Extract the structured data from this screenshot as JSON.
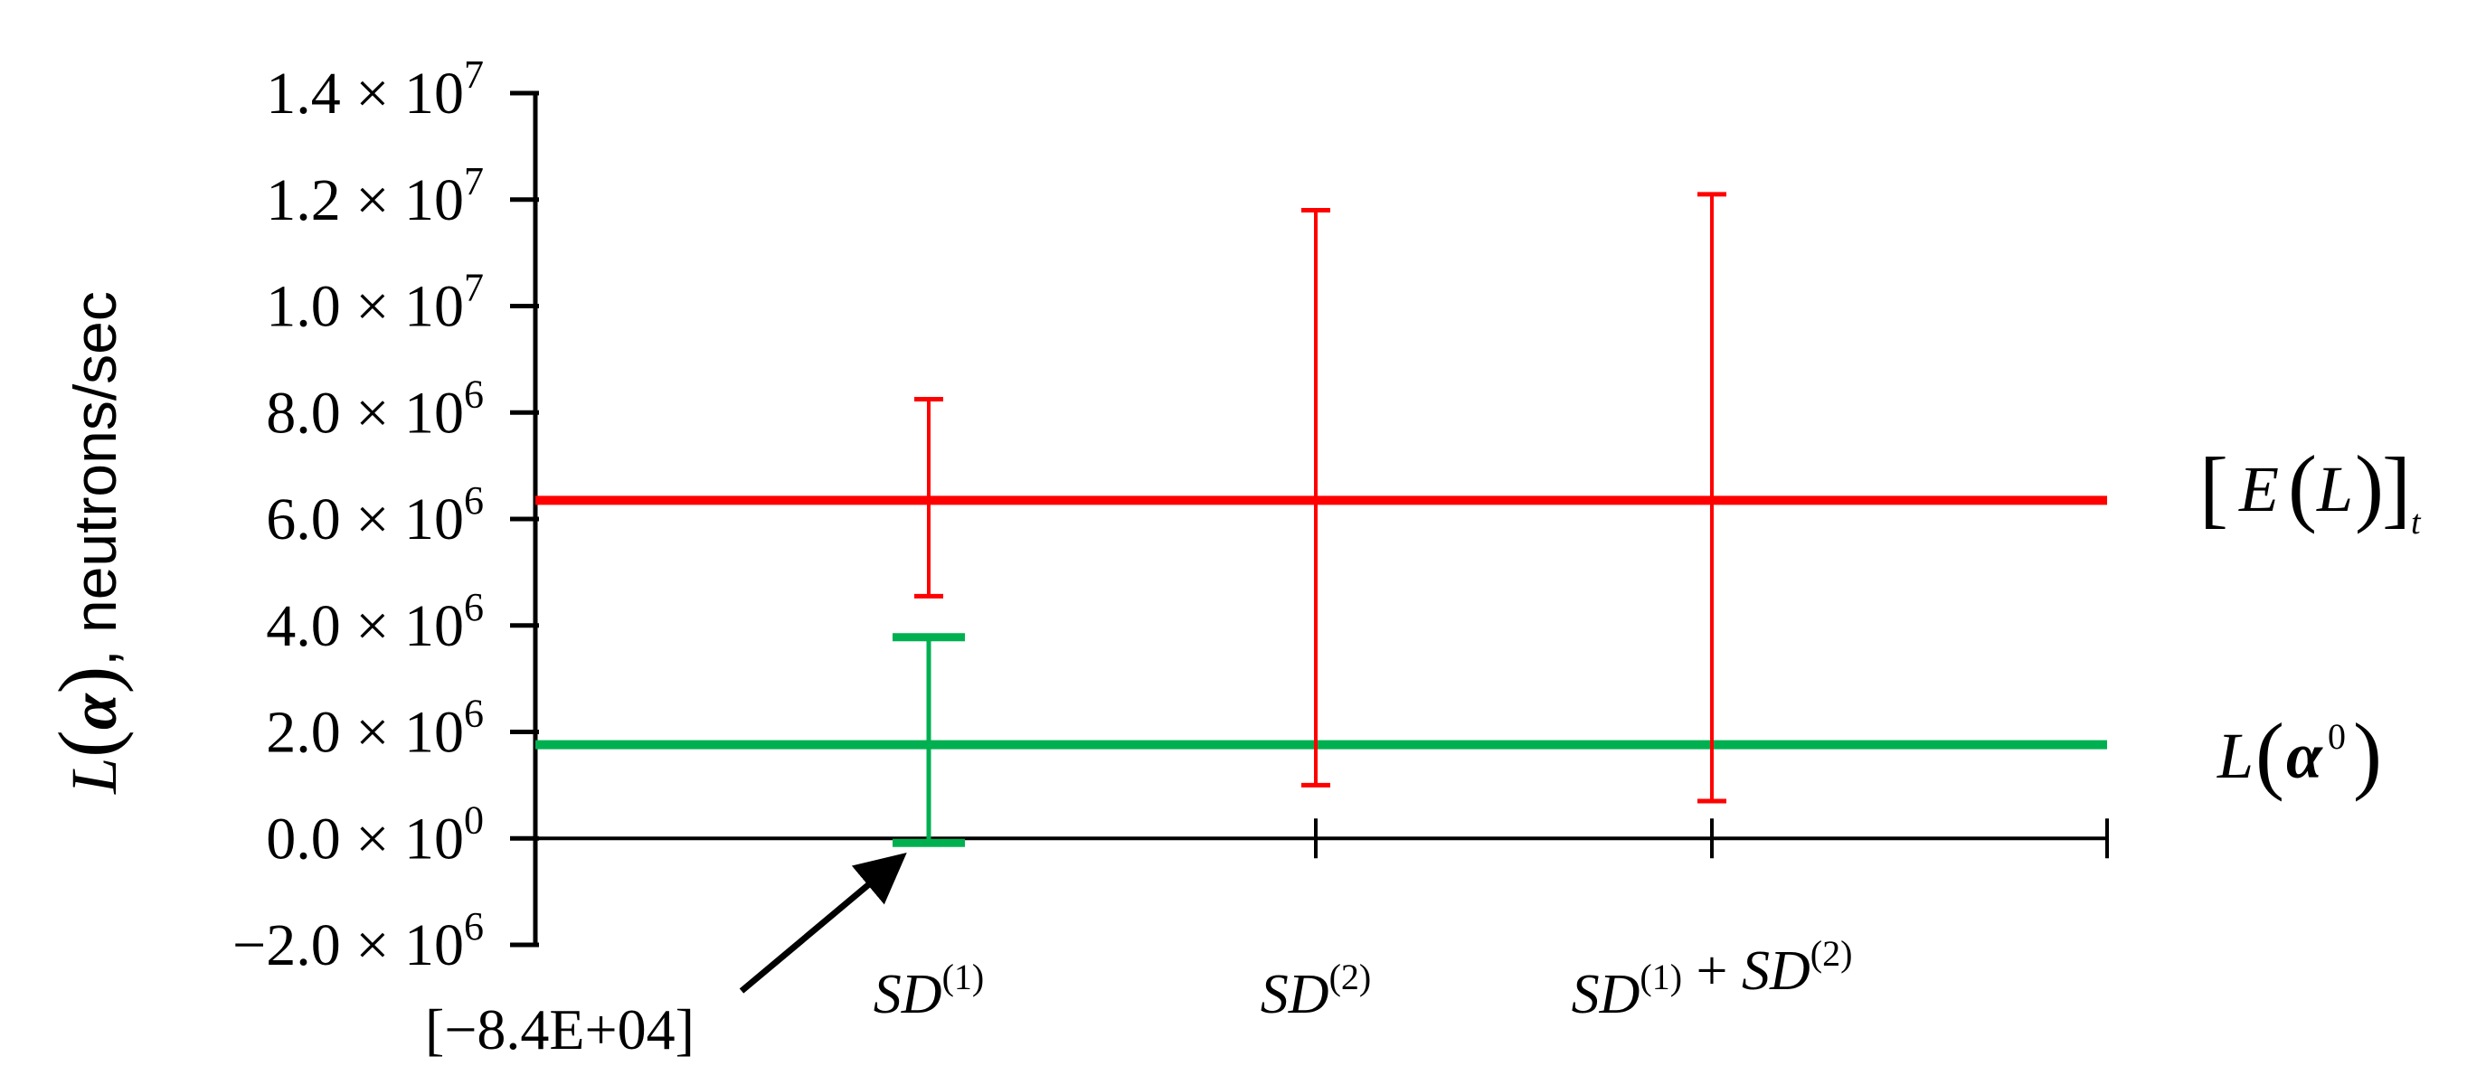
{
  "chart_data": {
    "type": "errorbar",
    "ylabel": {
      "main": "L",
      "arg": "α",
      "rest": ", neutrons/sec"
    },
    "ylim": [
      -2000000,
      14000000
    ],
    "yticks": [
      {
        "value": -2000000,
        "mantissa": "−2.0 × 10",
        "exp": "6"
      },
      {
        "value": 0,
        "mantissa": "0.0 × 10",
        "exp": "0"
      },
      {
        "value": 2000000,
        "mantissa": "2.0 × 10",
        "exp": "6"
      },
      {
        "value": 4000000,
        "mantissa": "4.0 × 10",
        "exp": "6"
      },
      {
        "value": 6000000,
        "mantissa": "6.0 × 10",
        "exp": "6"
      },
      {
        "value": 8000000,
        "mantissa": "8.0 × 10",
        "exp": "6"
      },
      {
        "value": 10000000,
        "mantissa": "1.0 × 10",
        "exp": "7"
      },
      {
        "value": 12000000,
        "mantissa": "1.2 × 10",
        "exp": "7"
      },
      {
        "value": 14000000,
        "mantissa": "1.4 × 10",
        "exp": "7"
      }
    ],
    "categories": [
      {
        "parts": [
          {
            "t": "SD",
            "sup": "(1)"
          }
        ]
      },
      {
        "parts": [
          {
            "t": "SD",
            "sup": "(2)"
          }
        ]
      },
      {
        "parts": [
          {
            "t": "SD",
            "sup": "(1)"
          },
          {
            "t": " + "
          },
          {
            "t": "SD",
            "sup": "(2)"
          }
        ]
      }
    ],
    "reference_lines": [
      {
        "name": "[E(L)]t",
        "value": 6350000,
        "color": "#ff0000"
      },
      {
        "name": "L(α0)",
        "value": 1760000,
        "color": "#00b050"
      }
    ],
    "series": [
      {
        "color": "#ff0000",
        "points": [
          {
            "category_index": 0,
            "center": 6350000,
            "low": 4550000,
            "high": 8250000
          },
          {
            "category_index": 1,
            "center": 6350000,
            "low": 1000000,
            "high": 11800000
          },
          {
            "category_index": 2,
            "center": 6350000,
            "low": 700000,
            "high": 12100000
          }
        ]
      },
      {
        "color": "#00b050",
        "points": [
          {
            "category_index": 0,
            "center": 1760000,
            "low": -84000,
            "high": 3780000
          }
        ]
      }
    ],
    "annotations": [
      {
        "text": "[−8.4E+04]",
        "points_to_value": -84000,
        "category_index": 0
      }
    ],
    "legend": {
      "red_label": {
        "bracket_open": "[",
        "E": "E",
        "L": "L",
        "bracket_close": "]",
        "sub": "t"
      },
      "green_label": {
        "L": "L",
        "alpha": "α",
        "sup": "0"
      }
    },
    "grid": false
  }
}
